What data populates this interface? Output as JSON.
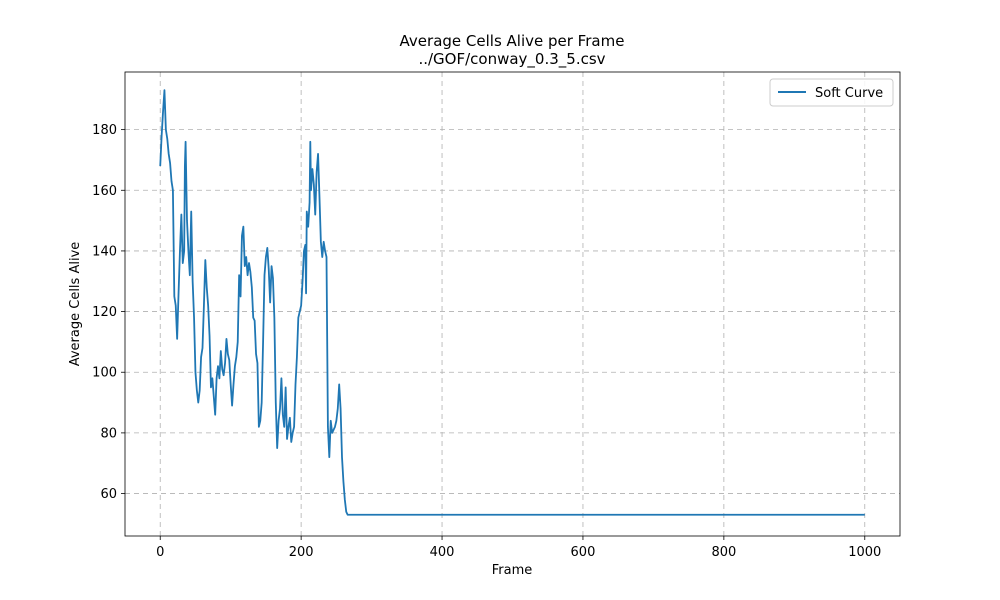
{
  "chart_data": {
    "type": "line",
    "title": "Average Cells Alive per Frame",
    "subtitle": "../GOF/conway_0.3_5.csv",
    "xlabel": "Frame",
    "ylabel": "Average Cells Alive",
    "xlim": [
      -50,
      1050
    ],
    "ylim": [
      46,
      199
    ],
    "xticks": [
      0,
      200,
      400,
      600,
      800,
      1000
    ],
    "yticks": [
      60,
      80,
      100,
      120,
      140,
      160,
      180
    ],
    "grid": true,
    "legend_position": "top-right",
    "series": [
      {
        "name": "Soft Curve",
        "color": "#1f77b4",
        "points": [
          [
            0,
            168
          ],
          [
            2,
            178
          ],
          [
            4,
            186
          ],
          [
            6,
            193
          ],
          [
            8,
            180
          ],
          [
            10,
            177
          ],
          [
            12,
            172
          ],
          [
            14,
            169
          ],
          [
            16,
            163
          ],
          [
            18,
            160
          ],
          [
            20,
            125
          ],
          [
            22,
            122
          ],
          [
            24,
            111
          ],
          [
            26,
            126
          ],
          [
            28,
            140
          ],
          [
            30,
            152
          ],
          [
            32,
            136
          ],
          [
            34,
            140
          ],
          [
            35,
            168
          ],
          [
            36,
            176
          ],
          [
            38,
            150
          ],
          [
            40,
            140
          ],
          [
            42,
            132
          ],
          [
            44,
            153
          ],
          [
            46,
            130
          ],
          [
            48,
            118
          ],
          [
            50,
            100
          ],
          [
            52,
            94
          ],
          [
            54,
            90
          ],
          [
            56,
            94
          ],
          [
            58,
            105
          ],
          [
            60,
            108
          ],
          [
            62,
            122
          ],
          [
            64,
            137
          ],
          [
            66,
            128
          ],
          [
            68,
            122
          ],
          [
            70,
            112
          ],
          [
            72,
            95
          ],
          [
            74,
            98
          ],
          [
            76,
            92
          ],
          [
            78,
            86
          ],
          [
            80,
            98
          ],
          [
            82,
            102
          ],
          [
            84,
            98
          ],
          [
            86,
            107
          ],
          [
            88,
            101
          ],
          [
            90,
            99
          ],
          [
            92,
            103
          ],
          [
            94,
            111
          ],
          [
            96,
            106
          ],
          [
            98,
            104
          ],
          [
            100,
            96
          ],
          [
            102,
            89
          ],
          [
            104,
            96
          ],
          [
            106,
            102
          ],
          [
            108,
            105
          ],
          [
            110,
            110
          ],
          [
            112,
            132
          ],
          [
            114,
            125
          ],
          [
            116,
            145
          ],
          [
            118,
            148
          ],
          [
            120,
            135
          ],
          [
            122,
            138
          ],
          [
            124,
            132
          ],
          [
            126,
            136
          ],
          [
            128,
            133
          ],
          [
            130,
            128
          ],
          [
            132,
            118
          ],
          [
            134,
            117
          ],
          [
            136,
            106
          ],
          [
            138,
            103
          ],
          [
            140,
            82
          ],
          [
            142,
            84
          ],
          [
            144,
            90
          ],
          [
            146,
            110
          ],
          [
            148,
            132
          ],
          [
            150,
            138
          ],
          [
            152,
            141
          ],
          [
            154,
            134
          ],
          [
            156,
            123
          ],
          [
            158,
            135
          ],
          [
            160,
            131
          ],
          [
            162,
            118
          ],
          [
            164,
            90
          ],
          [
            166,
            75
          ],
          [
            168,
            84
          ],
          [
            170,
            88
          ],
          [
            172,
            98
          ],
          [
            174,
            86
          ],
          [
            176,
            82
          ],
          [
            178,
            95
          ],
          [
            180,
            78
          ],
          [
            182,
            82
          ],
          [
            184,
            85
          ],
          [
            186,
            77
          ],
          [
            188,
            80
          ],
          [
            190,
            82
          ],
          [
            192,
            96
          ],
          [
            194,
            105
          ],
          [
            196,
            118
          ],
          [
            198,
            120
          ],
          [
            200,
            122
          ],
          [
            202,
            130
          ],
          [
            204,
            140
          ],
          [
            206,
            142
          ],
          [
            207,
            126
          ],
          [
            208,
            153
          ],
          [
            210,
            148
          ],
          [
            212,
            156
          ],
          [
            213,
            176
          ],
          [
            214,
            160
          ],
          [
            216,
            167
          ],
          [
            218,
            162
          ],
          [
            220,
            152
          ],
          [
            222,
            166
          ],
          [
            224,
            172
          ],
          [
            226,
            158
          ],
          [
            228,
            143
          ],
          [
            230,
            138
          ],
          [
            232,
            143
          ],
          [
            234,
            140
          ],
          [
            236,
            138
          ],
          [
            238,
            82
          ],
          [
            240,
            72
          ],
          [
            242,
            84
          ],
          [
            244,
            80
          ],
          [
            246,
            81
          ],
          [
            248,
            82
          ],
          [
            250,
            84
          ],
          [
            252,
            88
          ],
          [
            254,
            96
          ],
          [
            256,
            88
          ],
          [
            258,
            72
          ],
          [
            260,
            64
          ],
          [
            262,
            58
          ],
          [
            264,
            54
          ],
          [
            266,
            53
          ],
          [
            270,
            53
          ],
          [
            300,
            53
          ],
          [
            400,
            53
          ],
          [
            500,
            53
          ],
          [
            600,
            53
          ],
          [
            700,
            53
          ],
          [
            800,
            53
          ],
          [
            900,
            53
          ],
          [
            1000,
            53
          ]
        ]
      }
    ]
  }
}
